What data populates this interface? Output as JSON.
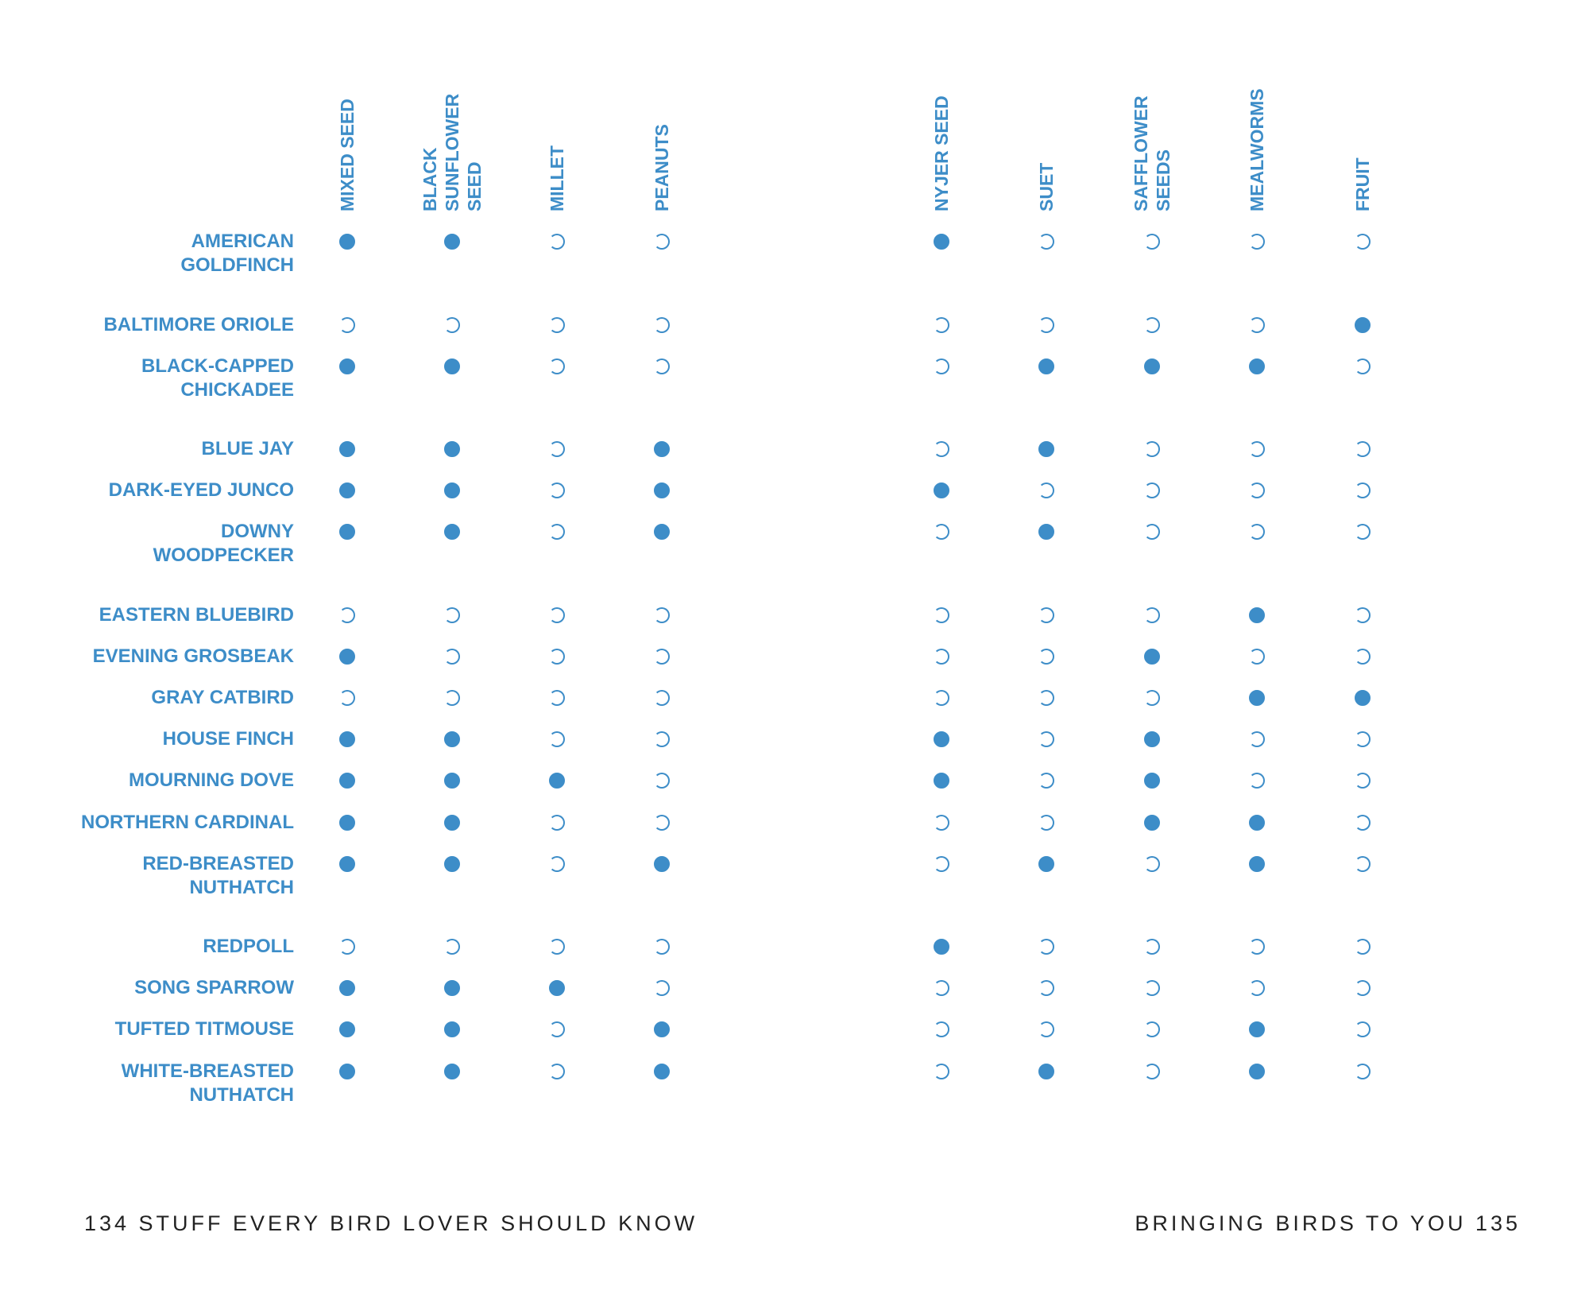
{
  "columns": [
    "MIXED SEED",
    "BLACK\nSUNFLOWER\nSEED",
    "MILLET",
    "PEANUTS",
    "NYJER SEED",
    "SUET",
    "SAFFLOWER\nSEEDS",
    "MEALWORMS",
    "FRUIT"
  ],
  "rows": [
    {
      "name": "AMERICAN\nGOLDFINCH",
      "values": [
        1,
        1,
        0,
        0,
        1,
        0,
        0,
        0,
        0
      ]
    },
    {
      "name": "BALTIMORE ORIOLE",
      "values": [
        0,
        0,
        0,
        0,
        0,
        0,
        0,
        0,
        1
      ]
    },
    {
      "name": "BLACK-CAPPED\nCHICKADEE",
      "values": [
        1,
        1,
        0,
        0,
        0,
        1,
        1,
        1,
        0
      ]
    },
    {
      "name": "BLUE JAY",
      "values": [
        1,
        1,
        0,
        1,
        0,
        1,
        0,
        0,
        0
      ]
    },
    {
      "name": "DARK-EYED JUNCO",
      "values": [
        1,
        1,
        0,
        1,
        1,
        0,
        0,
        0,
        0
      ]
    },
    {
      "name": "DOWNY\nWOODPECKER",
      "values": [
        1,
        1,
        0,
        1,
        0,
        1,
        0,
        0,
        0
      ]
    },
    {
      "name": "EASTERN BLUEBIRD",
      "values": [
        0,
        0,
        0,
        0,
        0,
        0,
        0,
        1,
        0
      ]
    },
    {
      "name": "EVENING GROSBEAK",
      "values": [
        1,
        0,
        0,
        0,
        0,
        0,
        1,
        0,
        0
      ]
    },
    {
      "name": "GRAY CATBIRD",
      "values": [
        0,
        0,
        0,
        0,
        0,
        0,
        0,
        1,
        1
      ]
    },
    {
      "name": "HOUSE FINCH",
      "values": [
        1,
        1,
        0,
        0,
        1,
        0,
        1,
        0,
        0
      ]
    },
    {
      "name": "MOURNING DOVE",
      "values": [
        1,
        1,
        1,
        0,
        1,
        0,
        1,
        0,
        0
      ]
    },
    {
      "name": "NORTHERN CARDINAL",
      "values": [
        1,
        1,
        0,
        0,
        0,
        0,
        1,
        1,
        0
      ]
    },
    {
      "name": "RED-BREASTED\nNUTHATCH",
      "values": [
        1,
        1,
        0,
        1,
        0,
        1,
        0,
        1,
        0
      ]
    },
    {
      "name": "REDPOLL",
      "values": [
        0,
        0,
        0,
        0,
        1,
        0,
        0,
        0,
        0
      ]
    },
    {
      "name": "SONG SPARROW",
      "values": [
        1,
        1,
        1,
        0,
        0,
        0,
        0,
        0,
        0
      ]
    },
    {
      "name": "TUFTED TITMOUSE",
      "values": [
        1,
        1,
        0,
        1,
        0,
        0,
        0,
        1,
        0
      ]
    },
    {
      "name": "WHITE-BREASTED\nNUTHATCH",
      "values": [
        1,
        1,
        0,
        1,
        0,
        1,
        0,
        1,
        0
      ]
    }
  ],
  "footer": {
    "left": "134  STUFF EVERY BIRD LOVER SHOULD KNOW",
    "right": "BRINGING BIRDS TO YOU  135"
  },
  "colors": {
    "accent": "#3d8dc8",
    "text": "#222222"
  }
}
